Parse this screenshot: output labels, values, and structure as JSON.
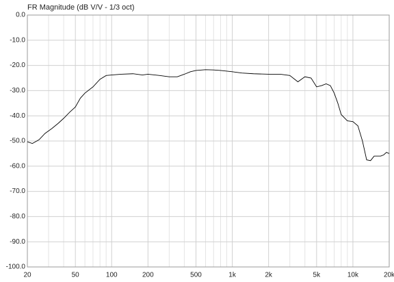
{
  "chart_data": {
    "type": "line",
    "title": "FR Magnitude (dB V/V - 1/3 oct)",
    "log_x": true,
    "grid": true,
    "xlim": [
      20,
      20000
    ],
    "ylim": [
      -100,
      0
    ],
    "xticks": [
      20,
      50,
      100,
      200,
      500,
      {
        "value": 1000,
        "label": "1k"
      },
      {
        "value": 2000,
        "label": "2k"
      },
      {
        "value": 5000,
        "label": "5k"
      },
      {
        "value": 10000,
        "label": "10k"
      },
      {
        "value": 20000,
        "label": "20k"
      }
    ],
    "xminorticks": [
      30,
      40,
      60,
      70,
      80,
      90,
      300,
      400,
      600,
      700,
      800,
      900,
      3000,
      4000,
      6000,
      7000,
      8000,
      9000
    ],
    "yticks": [
      {
        "value": 0,
        "label": "0.0"
      },
      {
        "value": -10,
        "label": "-10.0"
      },
      {
        "value": -20,
        "label": "-20.0"
      },
      {
        "value": -30,
        "label": "-30.0"
      },
      {
        "value": -40,
        "label": "-40.0"
      },
      {
        "value": -50,
        "label": "-50.0"
      },
      {
        "value": -60,
        "label": "-60.0"
      },
      {
        "value": -70,
        "label": "-70.0"
      },
      {
        "value": -80,
        "label": "-80.0"
      },
      {
        "value": -90,
        "label": "-90.0"
      },
      {
        "value": -100,
        "label": "-100.0"
      }
    ],
    "series": [
      {
        "color": "#000000",
        "x": [
          20,
          22,
          25,
          28,
          32,
          36,
          40,
          45,
          50,
          55,
          60,
          70,
          80,
          90,
          100,
          120,
          150,
          180,
          200,
          250,
          300,
          350,
          400,
          450,
          500,
          600,
          700,
          800,
          1000,
          1200,
          1500,
          2000,
          2500,
          3000,
          3500,
          4000,
          4500,
          5000,
          5500,
          6000,
          6500,
          7000,
          7500,
          8000,
          9000,
          10000,
          11000,
          12000,
          13000,
          14000,
          15000,
          17000,
          18000,
          19000,
          20000
        ],
        "values": [
          -50.3,
          -51,
          -49.5,
          -47,
          -45,
          -43,
          -41,
          -38.5,
          -36.5,
          -33,
          -31,
          -28.5,
          -25.5,
          -24,
          -23.8,
          -23.5,
          -23.3,
          -23.8,
          -23.5,
          -24,
          -24.5,
          -24.5,
          -23.5,
          -22.5,
          -22,
          -21.7,
          -21.8,
          -22,
          -22.5,
          -23,
          -23.3,
          -23.5,
          -23.5,
          -24,
          -26.5,
          -24.5,
          -25,
          -28.5,
          -28,
          -27.3,
          -28,
          -31,
          -35,
          -39.5,
          -42,
          -42.3,
          -44,
          -50,
          -57.5,
          -57.8,
          -56,
          -56,
          -55.5,
          -54.5,
          -55
        ]
      }
    ]
  }
}
